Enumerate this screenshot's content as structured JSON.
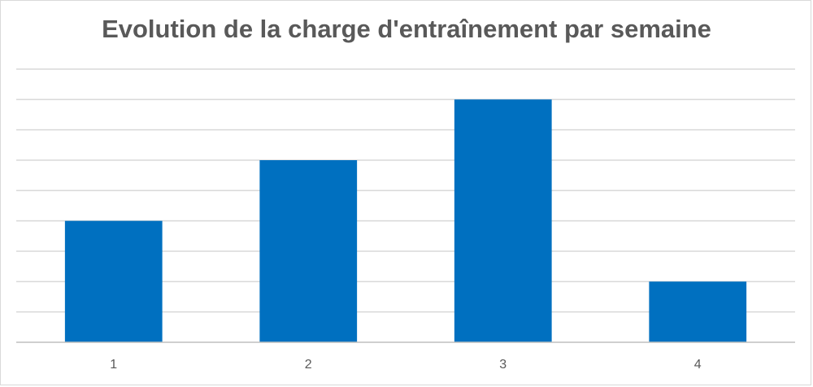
{
  "chart_data": {
    "type": "bar",
    "title": "Evolution de la charge d'entraînement par semaine",
    "categories": [
      "1",
      "2",
      "3",
      "4"
    ],
    "values": [
      4,
      6,
      8,
      2
    ],
    "xlabel": "",
    "ylabel": "",
    "ylim": [
      0,
      9
    ],
    "grid": true,
    "gridlines": 9,
    "y_tick_labels_visible": false,
    "legend": "none",
    "colors": {
      "bar": "#0070c0",
      "grid": "#d9d9d9",
      "axis": "#bfbfbf",
      "text": "#595959"
    }
  }
}
